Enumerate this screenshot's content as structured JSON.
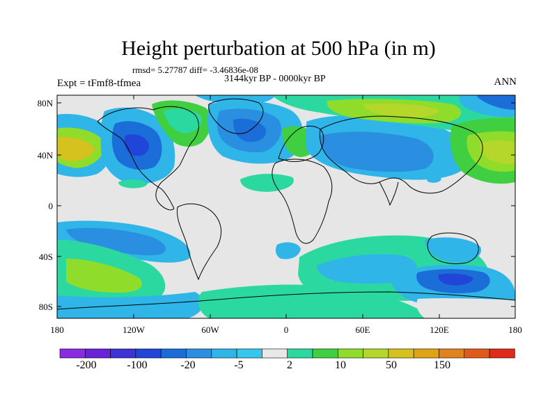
{
  "title": "Height perturbation at 500 hPa (in m)",
  "stats_line": "rmsd= 5.27787 diff= -3.46836e-08",
  "period_label": "3144kyr BP - 0000kyr BP",
  "experiment_label": "Expt = tFmf8-tfmea",
  "season_label": "ANN",
  "lat_ticks": [
    "80N",
    "40N",
    "0",
    "40S",
    "80S"
  ],
  "lon_ticks": [
    "180",
    "120W",
    "60W",
    "0",
    "60E",
    "120E",
    "180"
  ],
  "colorbar": {
    "colors": [
      "#8a2be2",
      "#6a22d8",
      "#3d34d6",
      "#2145d8",
      "#1b6ed8",
      "#2a8fe0",
      "#2fb5e8",
      "#38c7ec",
      "#e8e8e8",
      "#2bd9a0",
      "#40cf40",
      "#8fdc2a",
      "#b5d62a",
      "#d6c21e",
      "#e0a315",
      "#e0831c",
      "#e05a1c",
      "#e02b1b"
    ],
    "labels": [
      "-200",
      "-100",
      "-20",
      "-5",
      "2",
      "10",
      "50",
      "150"
    ]
  }
}
